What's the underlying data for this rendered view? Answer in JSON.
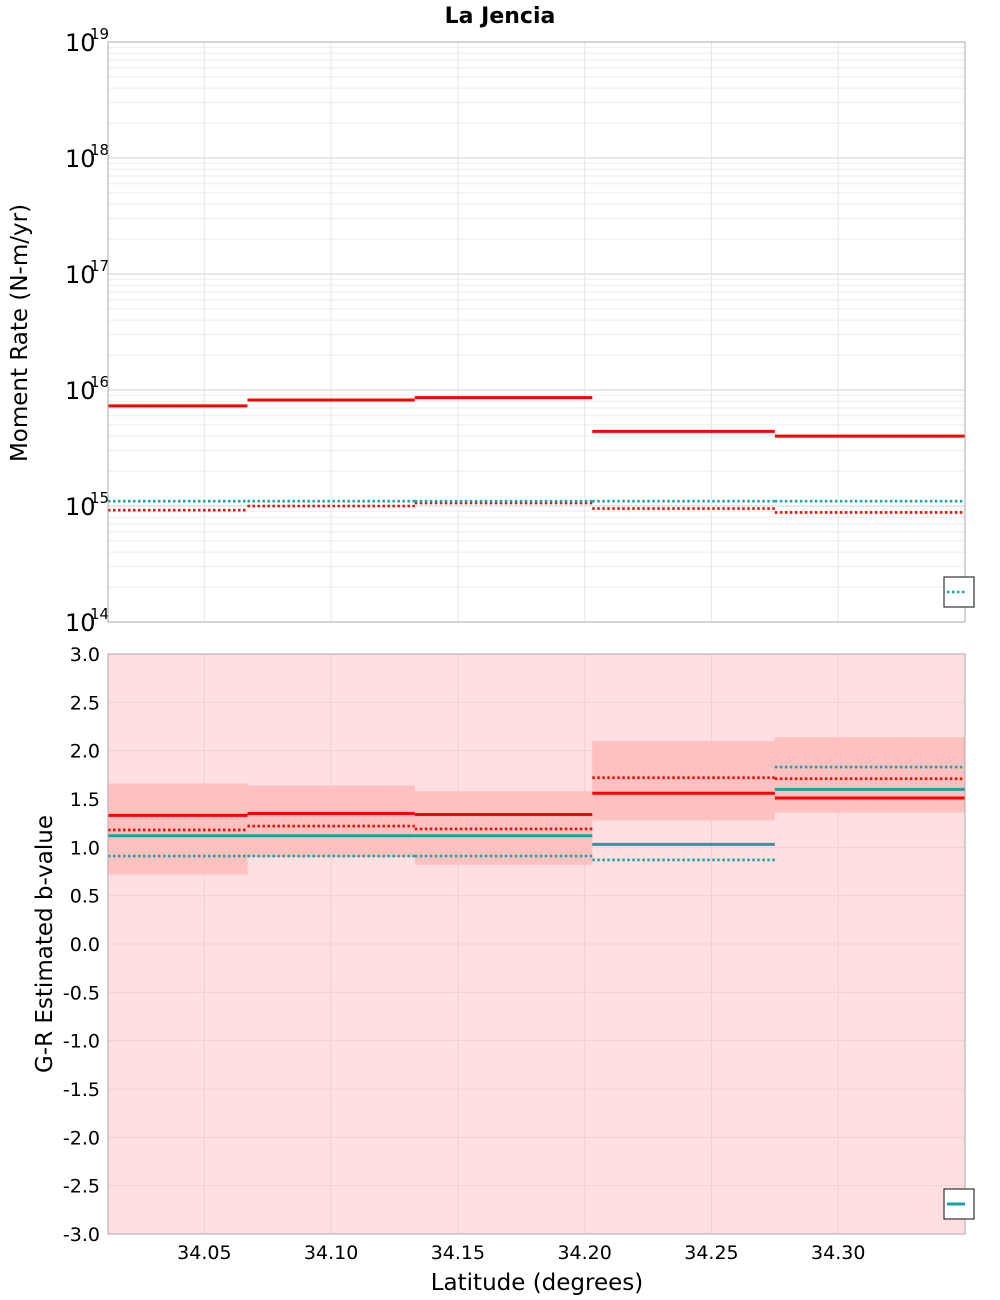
{
  "figure": {
    "title": "La Jencia",
    "xlabel": "Latitude (degrees)"
  },
  "colors": {
    "red": "#ff0000",
    "teal": "#17a3a3",
    "band": "#ffbcbc",
    "background": "#ffdfe0",
    "grid": "#dddddd"
  },
  "chart_data": [
    {
      "type": "line",
      "subtype": "step",
      "ylabel": "Moment Rate (N-m/yr)",
      "yscale": "log",
      "ylim": [
        100000000000000.0,
        1e+19
      ],
      "xlim": [
        34.012,
        34.35
      ],
      "xticks": [],
      "yticks": [
        {
          "base": "10",
          "exp": "14",
          "value": 100000000000000.0
        },
        {
          "base": "10",
          "exp": "15",
          "value": 1000000000000000.0
        },
        {
          "base": "10",
          "exp": "16",
          "value": 1e+16
        },
        {
          "base": "10",
          "exp": "17",
          "value": 1e+17
        },
        {
          "base": "10",
          "exp": "18",
          "value": 1e+18
        },
        {
          "base": "10",
          "exp": "19",
          "value": 1e+19
        }
      ],
      "grid": true,
      "legend": "bottom-right (clipped)",
      "segments_x": [
        [
          34.012,
          34.067
        ],
        [
          34.067,
          34.133
        ],
        [
          34.133,
          34.203
        ],
        [
          34.203,
          34.275
        ],
        [
          34.275,
          34.35
        ]
      ],
      "series": [
        {
          "style": "solid",
          "color": "red",
          "values": [
            7300000000000000.0,
            8200000000000000.0,
            8600000000000000.0,
            4400000000000000.0,
            4000000000000000.0
          ]
        },
        {
          "style": "dotted",
          "color": "red",
          "values": [
            920000000000000.0,
            1000000000000000.0,
            1060000000000000.0,
            950000000000000.0,
            880000000000000.0
          ]
        },
        {
          "style": "dotted",
          "color": "teal",
          "values": [
            1100000000000000.0,
            1100000000000000.0,
            1100000000000000.0,
            1100000000000000.0,
            1100000000000000.0
          ]
        }
      ]
    },
    {
      "type": "line",
      "subtype": "step",
      "ylabel": "G-R Estimated b-value",
      "ylim": [
        -3.0,
        3.0
      ],
      "xlim": [
        34.012,
        34.35
      ],
      "xticks": [
        "34.05",
        "34.10",
        "34.15",
        "34.20",
        "34.25",
        "34.30"
      ],
      "xtick_values": [
        34.05,
        34.1,
        34.15,
        34.2,
        34.25,
        34.3
      ],
      "yticks": [
        "3.0",
        "2.5",
        "2.0",
        "1.5",
        "1.0",
        "0.5",
        "0.0",
        "-0.5",
        "-1.0",
        "-1.5",
        "-2.0",
        "-2.5",
        "-3.0"
      ],
      "ytick_values": [
        3.0,
        2.5,
        2.0,
        1.5,
        1.0,
        0.5,
        0.0,
        -0.5,
        -1.0,
        -1.5,
        -2.0,
        -2.5,
        -3.0
      ],
      "grid": true,
      "legend": "bottom-right (clipped)",
      "segments_x": [
        [
          34.012,
          34.067
        ],
        [
          34.067,
          34.133
        ],
        [
          34.133,
          34.203
        ],
        [
          34.203,
          34.275
        ],
        [
          34.275,
          34.35
        ]
      ],
      "bands": [
        {
          "lo": 0.72,
          "hi": 1.66
        },
        {
          "lo": 0.9,
          "hi": 1.64
        },
        {
          "lo": 0.82,
          "hi": 1.58
        },
        {
          "lo": 1.28,
          "hi": 2.1
        },
        {
          "lo": 1.36,
          "hi": 2.14
        }
      ],
      "series": [
        {
          "style": "solid",
          "color": "red",
          "values": [
            1.33,
            1.35,
            1.34,
            1.56,
            1.51
          ]
        },
        {
          "style": "dotted",
          "color": "red",
          "values": [
            1.18,
            1.22,
            1.19,
            1.72,
            1.71
          ]
        },
        {
          "style": "solid",
          "color": "teal",
          "values": [
            1.12,
            1.12,
            1.12,
            1.03,
            1.6
          ]
        },
        {
          "style": "dotted",
          "color": "teal",
          "values": [
            0.91,
            0.91,
            0.91,
            0.87,
            1.83
          ]
        }
      ]
    }
  ]
}
